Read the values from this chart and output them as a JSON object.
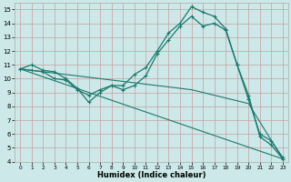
{
  "xlabel": "Humidex (Indice chaleur)",
  "bg_color": "#cce8e8",
  "grid_color": "#c8a0a0",
  "line_color": "#1a7a6e",
  "xlim": [
    -0.5,
    23.5
  ],
  "ylim": [
    4,
    15.5
  ],
  "yticks": [
    4,
    5,
    6,
    7,
    8,
    9,
    10,
    11,
    12,
    13,
    14,
    15
  ],
  "xticks": [
    0,
    1,
    2,
    3,
    4,
    5,
    6,
    7,
    8,
    9,
    10,
    11,
    12,
    13,
    14,
    15,
    16,
    17,
    18,
    19,
    20,
    21,
    22,
    23
  ],
  "curve1_x": [
    0,
    1,
    2,
    3,
    4,
    5,
    6,
    7,
    8,
    9,
    10,
    11,
    12,
    13,
    14,
    15,
    16,
    17,
    18,
    19,
    20,
    21,
    22,
    23
  ],
  "curve1_y": [
    10.7,
    11.0,
    10.6,
    10.5,
    10.0,
    9.3,
    8.3,
    9.0,
    9.5,
    9.5,
    10.3,
    10.8,
    12.0,
    13.3,
    14.0,
    15.2,
    14.8,
    14.5,
    13.6,
    11.0,
    8.8,
    5.8,
    5.2,
    4.2
  ],
  "curve2_x": [
    0,
    1,
    2,
    3,
    4,
    5,
    6,
    7,
    8,
    9,
    10,
    11,
    12,
    13,
    14,
    15,
    16,
    17,
    18,
    19,
    20,
    21,
    22,
    23
  ],
  "curve2_y": [
    10.7,
    10.6,
    10.5,
    10.0,
    9.9,
    9.2,
    8.8,
    9.2,
    9.5,
    9.2,
    9.5,
    10.2,
    11.8,
    12.8,
    13.8,
    14.5,
    13.8,
    14.0,
    13.5,
    11.0,
    8.5,
    6.0,
    5.5,
    4.3
  ],
  "line3_x": [
    0,
    23
  ],
  "line3_y": [
    10.7,
    4.2
  ],
  "line4_x": [
    0,
    9,
    15,
    20,
    23
  ],
  "line4_y": [
    10.7,
    9.8,
    9.2,
    8.2,
    4.2
  ]
}
